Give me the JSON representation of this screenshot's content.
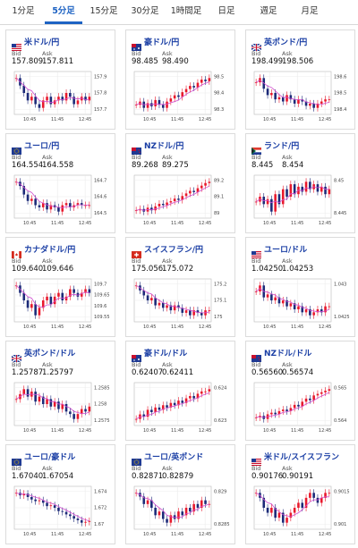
{
  "tabs": [
    {
      "label": "1分足",
      "active": false
    },
    {
      "label": "5分足",
      "active": true
    },
    {
      "label": "15分足",
      "active": false
    },
    {
      "label": "30分足",
      "active": false
    },
    {
      "label": "1時間足",
      "active": false
    },
    {
      "label": "日足",
      "active": false
    },
    {
      "label": "週足",
      "active": false
    },
    {
      "label": "月足",
      "active": false
    }
  ],
  "labels": {
    "bid": "Bid",
    "ask": "Ask"
  },
  "colors": {
    "up": "#e8192c",
    "down": "#1c2a78",
    "ma": "#d24fd0",
    "accent": "#1e63c3",
    "pair": "#1b3fa5"
  },
  "cards": [
    {
      "pair": "米ドル/円",
      "flag": "us",
      "bid": "157.809",
      "ask": "157.811",
      "x_ticks": [
        "10:45",
        "11:45",
        "12:45"
      ],
      "y_ticks": [
        "157.9",
        "157.8",
        "157.7"
      ],
      "closes": [
        157.86,
        157.84,
        157.82,
        157.8,
        157.81,
        157.79,
        157.78,
        157.8,
        157.81,
        157.79,
        157.8,
        157.81,
        157.8,
        157.82,
        157.81,
        157.79,
        157.8,
        157.81,
        157.8,
        157.81
      ]
    },
    {
      "pair": "豪ドル/円",
      "flag": "au",
      "bid": "98.485",
      "ask": "98.490",
      "x_ticks": [
        "10:45",
        "11:45",
        "12:45"
      ],
      "y_ticks": [
        "98.5",
        "98.4",
        "98.3"
      ],
      "closes": [
        98.32,
        98.34,
        98.3,
        98.33,
        98.31,
        98.35,
        98.32,
        98.3,
        98.34,
        98.36,
        98.38,
        98.37,
        98.4,
        98.42,
        98.44,
        98.43,
        98.46,
        98.48,
        98.47,
        98.49
      ]
    },
    {
      "pair": "英ポンド/円",
      "flag": "uk",
      "bid": "198.499",
      "ask": "198.506",
      "x_ticks": [
        "10:45",
        "11:45",
        "12:45"
      ],
      "y_ticks": [
        "198.6",
        "198.5",
        "198.4"
      ],
      "closes": [
        198.58,
        198.6,
        198.55,
        198.52,
        198.53,
        198.5,
        198.51,
        198.49,
        198.52,
        198.5,
        198.48,
        198.5,
        198.49,
        198.47,
        198.48,
        198.46,
        198.48,
        198.49,
        198.5,
        198.5
      ]
    },
    {
      "pair": "ユーロ/円",
      "flag": "eu",
      "bid": "164.554",
      "ask": "164.558",
      "x_ticks": [
        "10:45",
        "11:45",
        "12:45"
      ],
      "y_ticks": [
        "164.7",
        "164.6",
        "164.5"
      ],
      "closes": [
        164.66,
        164.64,
        164.6,
        164.57,
        164.58,
        164.55,
        164.54,
        164.56,
        164.53,
        164.55,
        164.54,
        164.52,
        164.55,
        164.56,
        164.54,
        164.55,
        164.56,
        164.55,
        164.55,
        164.55
      ]
    },
    {
      "pair": "NZドル/円",
      "flag": "nz",
      "bid": "89.268",
      "ask": "89.275",
      "x_ticks": [
        "10:45",
        "11:45",
        "12:45"
      ],
      "y_ticks": [
        "89.2",
        "89.1",
        "89"
      ],
      "closes": [
        89.05,
        89.06,
        89.04,
        89.07,
        89.05,
        89.08,
        89.1,
        89.09,
        89.11,
        89.12,
        89.14,
        89.13,
        89.16,
        89.18,
        89.2,
        89.19,
        89.22,
        89.24,
        89.26,
        89.27
      ]
    },
    {
      "pair": "ランド/円",
      "flag": "za",
      "bid": "8.445",
      "ask": "8.454",
      "x_ticks": [
        "10:45",
        "11:45",
        "12:45"
      ],
      "y_ticks": [
        "8.45",
        "8.445"
      ],
      "closes": [
        8.444,
        8.446,
        8.443,
        8.445,
        8.44,
        8.447,
        8.443,
        8.449,
        8.446,
        8.451,
        8.447,
        8.45,
        8.448,
        8.452,
        8.449,
        8.451,
        8.448,
        8.45,
        8.447,
        8.449
      ]
    },
    {
      "pair": "カナダドル/円",
      "flag": "ca",
      "bid": "109.640",
      "ask": "109.646",
      "x_ticks": [
        "10:45",
        "11:45",
        "12:45"
      ],
      "y_ticks": [
        "109.7",
        "109.65",
        "109.6",
        "109.55"
      ],
      "closes": [
        109.66,
        109.64,
        109.62,
        109.6,
        109.61,
        109.58,
        109.6,
        109.62,
        109.63,
        109.61,
        109.63,
        109.64,
        109.62,
        109.63,
        109.65,
        109.64,
        109.63,
        109.64,
        109.65,
        109.64
      ]
    },
    {
      "pair": "スイスフラン/円",
      "flag": "ch",
      "bid": "175.056",
      "ask": "175.072",
      "x_ticks": [
        "10:45",
        "11:45",
        "12:45"
      ],
      "y_ticks": [
        "175.2",
        "175.1",
        "175"
      ],
      "closes": [
        175.16,
        175.14,
        175.12,
        175.1,
        175.11,
        175.08,
        175.09,
        175.07,
        175.08,
        175.06,
        175.08,
        175.07,
        175.05,
        175.06,
        175.04,
        175.06,
        175.05,
        175.04,
        175.06,
        175.06
      ]
    },
    {
      "pair": "ユーロ/ドル",
      "flag": "us",
      "bid": "1.04250",
      "ask": "1.04253",
      "x_ticks": [
        "10:45",
        "11:45",
        "12:45"
      ],
      "y_ticks": [
        "1.043",
        "1.0425"
      ],
      "closes": [
        1.043,
        1.0432,
        1.0428,
        1.0429,
        1.0427,
        1.0428,
        1.0426,
        1.0427,
        1.0425,
        1.0426,
        1.0424,
        1.0425,
        1.0423,
        1.0424,
        1.0422,
        1.0423,
        1.0424,
        1.0423,
        1.0425,
        1.0425
      ]
    },
    {
      "pair": "英ポンド/ドル",
      "flag": "uk",
      "bid": "1.25787",
      "ask": "1.25797",
      "x_ticks": [
        "10:45",
        "11:45",
        "12:45"
      ],
      "y_ticks": [
        "1.2585",
        "1.258",
        "1.2575"
      ],
      "closes": [
        1.2582,
        1.2584,
        1.2586,
        1.2583,
        1.2585,
        1.2581,
        1.2583,
        1.258,
        1.2582,
        1.2579,
        1.2581,
        1.2578,
        1.258,
        1.2577,
        1.2576,
        1.2574,
        1.2576,
        1.2578,
        1.2577,
        1.2579
      ]
    },
    {
      "pair": "豪ドル/ドル",
      "flag": "au",
      "bid": "0.62407",
      "ask": "0.62411",
      "x_ticks": [
        "10:45",
        "11:45",
        "12:45"
      ],
      "y_ticks": [
        "0.624",
        "0.623"
      ],
      "closes": [
        0.6228,
        0.623,
        0.6229,
        0.6232,
        0.6231,
        0.6233,
        0.6232,
        0.6234,
        0.6233,
        0.6235,
        0.6234,
        0.6236,
        0.6235,
        0.6237,
        0.6238,
        0.6237,
        0.6239,
        0.624,
        0.624,
        0.6241
      ]
    },
    {
      "pair": "NZドル/ドル",
      "flag": "nz",
      "bid": "0.56560",
      "ask": "0.56574",
      "x_ticks": [
        "10:45",
        "11:45",
        "12:45"
      ],
      "y_ticks": [
        "0.565",
        "0.564"
      ],
      "closes": [
        0.5638,
        0.5639,
        0.5637,
        0.564,
        0.5641,
        0.564,
        0.5642,
        0.5643,
        0.5642,
        0.5644,
        0.5646,
        0.5645,
        0.5648,
        0.565,
        0.5649,
        0.5652,
        0.5653,
        0.5654,
        0.5655,
        0.5656
      ]
    },
    {
      "pair": "ユーロ/豪ドル",
      "flag": "eu",
      "bid": "1.67040",
      "ask": "1.67054",
      "x_ticks": [
        "10:45",
        "11:45",
        "12:45"
      ],
      "y_ticks": [
        "1.674",
        "1.672",
        "1.67"
      ],
      "closes": [
        1.6738,
        1.6735,
        1.6737,
        1.6733,
        1.673,
        1.6728,
        1.6729,
        1.6726,
        1.6722,
        1.6723,
        1.672,
        1.6716,
        1.6715,
        1.6712,
        1.671,
        1.6707,
        1.6705,
        1.6702,
        1.6703,
        1.6704
      ]
    },
    {
      "pair": "ユーロ/英ポンド",
      "flag": "eu",
      "bid": "0.82871",
      "ask": "0.82879",
      "x_ticks": [
        "10:45",
        "11:45",
        "12:45"
      ],
      "y_ticks": [
        "0.829",
        "0.8285"
      ],
      "closes": [
        0.829,
        0.8289,
        0.8287,
        0.8288,
        0.8286,
        0.8284,
        0.8285,
        0.8283,
        0.8282,
        0.8284,
        0.8283,
        0.8285,
        0.8284,
        0.8286,
        0.8285,
        0.8287,
        0.8286,
        0.8288,
        0.8287,
        0.8287
      ]
    },
    {
      "pair": "米ドル/スイスフラン",
      "flag": "us",
      "bid": "0.90176",
      "ask": "0.90191",
      "x_ticks": [
        "10:45",
        "11:45",
        "12:45"
      ],
      "y_ticks": [
        "0.9015",
        "0.901"
      ],
      "closes": [
        0.9018,
        0.9017,
        0.9015,
        0.9014,
        0.9015,
        0.9013,
        0.9014,
        0.9012,
        0.9013,
        0.9014,
        0.9015,
        0.9016,
        0.9015,
        0.9017,
        0.9018,
        0.9017,
        0.9016,
        0.9017,
        0.9018,
        0.9018
      ]
    }
  ]
}
